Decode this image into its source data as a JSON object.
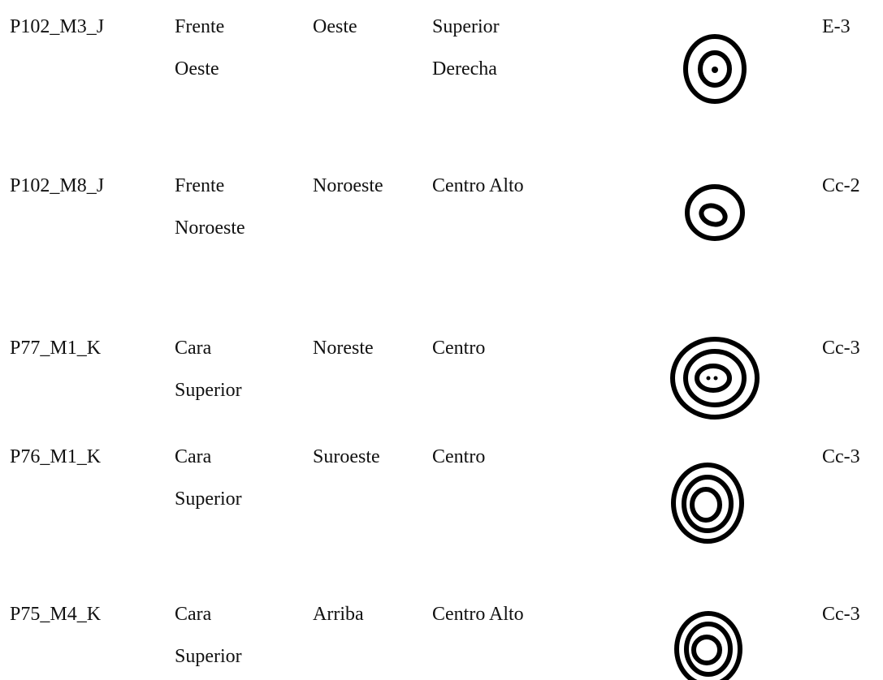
{
  "table": {
    "rows": [
      [
        [
          "P102_M3_J"
        ],
        [
          "Frente",
          "Oeste"
        ],
        [
          "Oeste"
        ],
        [
          "Superior",
          "Derecha"
        ],
        [
          "E-3"
        ]
      ],
      [
        [
          "P102_M8_J"
        ],
        [
          "Frente",
          "Noroeste"
        ],
        [
          "Noroeste"
        ],
        [
          "Centro Alto"
        ],
        [
          "Cc-2"
        ]
      ],
      [
        [
          "P77_M1_K"
        ],
        [
          "Cara",
          "Superior"
        ],
        [
          "Noreste"
        ],
        [
          "Centro"
        ],
        [
          "Cc-3"
        ]
      ],
      [
        [
          "P76_M1_K"
        ],
        [
          "Cara",
          "Superior"
        ],
        [
          "Suroeste"
        ],
        [
          "Centro"
        ],
        [
          "Cc-3"
        ]
      ],
      [
        [
          "P75_M4_K"
        ],
        [
          "Cara",
          "Superior"
        ],
        [
          "Arriba"
        ],
        [
          "Centro Alto"
        ],
        [
          "Cc-3"
        ]
      ]
    ]
  }
}
